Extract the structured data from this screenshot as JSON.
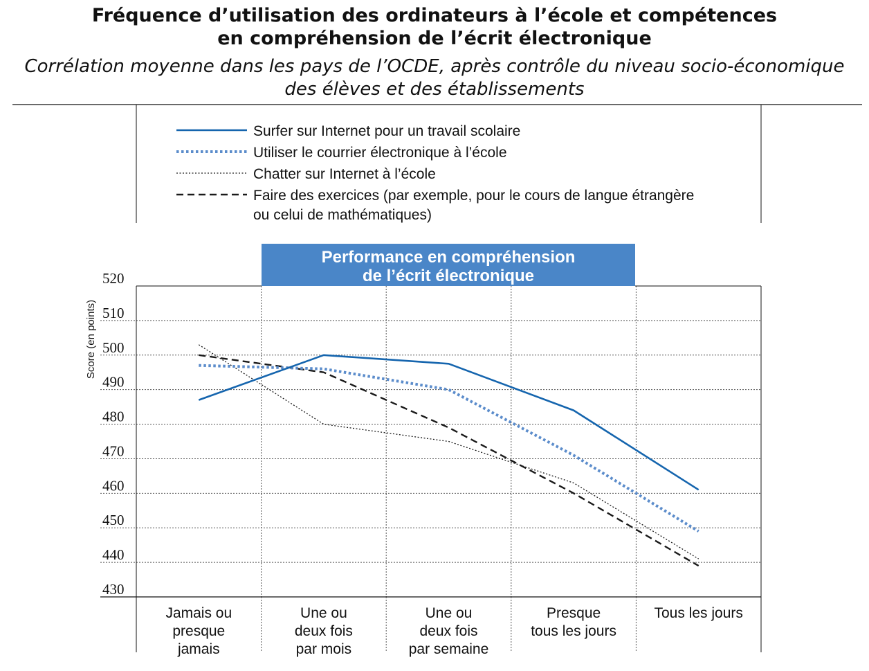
{
  "title_lines": [
    "Fréquence d’utilisation des ordinateurs à l’école et compétences",
    "en compréhension de l’écrit électronique"
  ],
  "subtitle_lines": [
    "Corrélation moyenne dans les pays de l’OCDE, après contrôle du niveau socio-économique",
    "des élèves et des établissements"
  ],
  "colors": {
    "solid_blue": "#1565ae",
    "dotted_blue": "#5b8ccb",
    "black": "#1a1a1a",
    "header_fill": "#4a86c8",
    "header_text": "#ffffff",
    "grid": "#555555"
  },
  "chart_data": {
    "type": "line",
    "panel_title_lines": [
      "Performance en compréhension",
      "de l’écrit électronique"
    ],
    "ylabel": "Score (en points)",
    "ylim": [
      430,
      520
    ],
    "yticks": [
      430,
      440,
      450,
      460,
      470,
      480,
      490,
      500,
      510,
      520
    ],
    "grid": true,
    "legend_position": "top",
    "categories": [
      [
        "Jamais ou",
        "presque",
        "jamais"
      ],
      [
        "Une ou",
        "deux fois",
        "par mois"
      ],
      [
        "Une ou",
        "deux fois",
        "par semaine"
      ],
      [
        "Presque",
        "tous les jours"
      ],
      [
        "Tous les jours"
      ]
    ],
    "series": [
      {
        "name": [
          "Surfer sur Internet pour un travail scolaire"
        ],
        "style": "solid",
        "values": [
          487,
          500,
          497.5,
          484,
          461
        ]
      },
      {
        "name": [
          "Utiliser le courrier électronique à l’école"
        ],
        "style": "dotted-blue",
        "values": [
          497,
          496,
          490,
          471,
          449
        ]
      },
      {
        "name": [
          "Chatter sur Internet à l’école"
        ],
        "style": "dotted-black",
        "values": [
          503,
          480,
          475,
          463,
          441
        ]
      },
      {
        "name": [
          "Faire des exercices (par exemple, pour le cours de langue étrangère",
          "ou celui de mathématiques)"
        ],
        "style": "dashed",
        "values": [
          500,
          495,
          479,
          460,
          439
        ]
      }
    ]
  }
}
